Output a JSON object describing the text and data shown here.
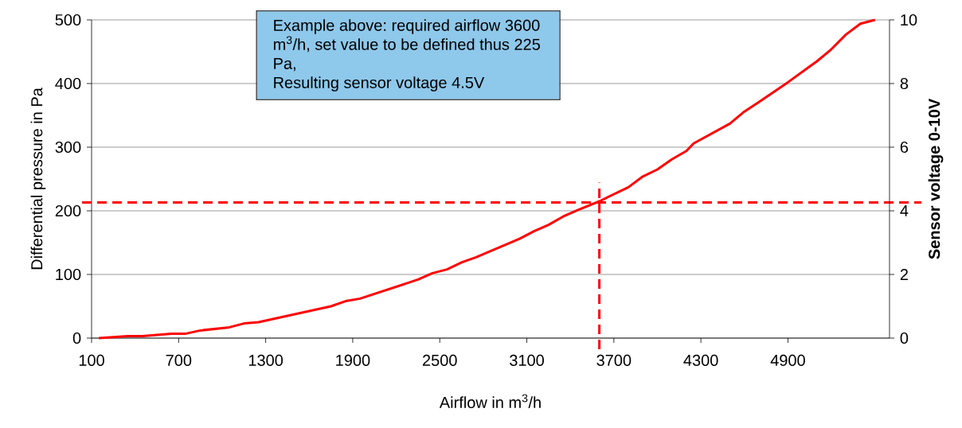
{
  "chart_data": {
    "type": "line",
    "xlabel": "Airflow in m$^{3}$/h",
    "ylabel": "Differential pressure in Pa",
    "y2label": "Sensor voltage 0-10V",
    "annotations": [
      "Example above: required airflow 3600 m$^{3}$/h, set value to be defined thus 225 Pa,",
      "Resulting sensor voltage 4.5V"
    ],
    "x": [
      150,
      350,
      450,
      650,
      750,
      850,
      1050,
      1150,
      1250,
      1750,
      1850,
      1950,
      2350,
      2450,
      2550,
      2650,
      2750,
      3050,
      3150,
      3250,
      3350,
      3450,
      3600,
      3800,
      3900,
      4000,
      4100,
      4200,
      4250,
      4500,
      4600,
      4700,
      4900,
      5100,
      5200,
      5300,
      5400,
      5500
    ],
    "series": [
      {
        "color": "#ff0000",
        "values": [
          0,
          3,
          3,
          7,
          7,
          12,
          17,
          23,
          25,
          50,
          58,
          62,
          92,
          102,
          108,
          119,
          127,
          156,
          168,
          178,
          191,
          201,
          215,
          237,
          254,
          265,
          281,
          294,
          306,
          337,
          356,
          371,
          402,
          435,
          454,
          477,
          494,
          500
        ]
      }
    ],
    "xlim": [
      100,
      5600
    ],
    "xticks": [
      100,
      700,
      1300,
      1900,
      2500,
      3100,
      3700,
      4300,
      4900
    ],
    "ylim": [
      0,
      500
    ],
    "yticks": [
      0,
      100,
      200,
      300,
      400,
      500
    ],
    "y2lim": [
      0,
      10
    ],
    "y2ticks": [
      0,
      2,
      4,
      6,
      8,
      10
    ],
    "grid": "y",
    "marker": "none",
    "line_style": "solid",
    "ref_lines": [
      {
        "axis": "y",
        "value": 213,
        "color": "#ff0000",
        "line_style": "dashed"
      },
      {
        "axis": "x",
        "value": 3600,
        "color": "#ff0000",
        "line_style": "dashed"
      }
    ]
  }
}
